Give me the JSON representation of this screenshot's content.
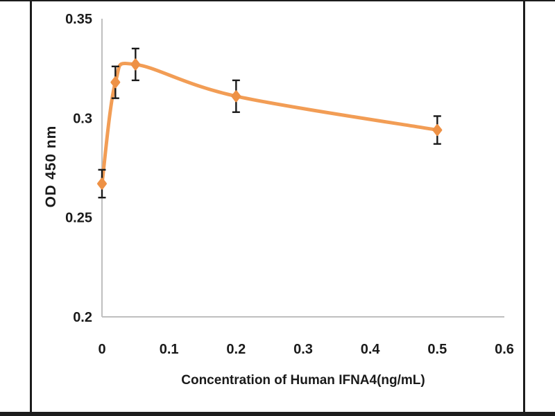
{
  "figure": {
    "background": "#ffffff",
    "frame_color": "#1c1c1c"
  },
  "chart_data": {
    "type": "line",
    "title": "",
    "xlabel": "Concentration of Human IFNA4(ng/mL)",
    "ylabel": "OD 450 nm",
    "x": [
      0,
      0.02,
      0.05,
      0.2,
      0.5
    ],
    "y": [
      0.267,
      0.318,
      0.327,
      0.311,
      0.294
    ],
    "yerr": [
      0.007,
      0.008,
      0.008,
      0.008,
      0.007
    ],
    "xlim": [
      0,
      0.6
    ],
    "ylim": [
      0.2,
      0.35
    ],
    "xticks": [
      0,
      0.1,
      0.2,
      0.3,
      0.4,
      0.5,
      0.6
    ],
    "xtick_labels": [
      "0",
      "0.1",
      "0.2",
      "0.3",
      "0.4",
      "0.5",
      "0.6"
    ],
    "yticks": [
      0.2,
      0.25,
      0.3,
      0.35
    ],
    "ytick_labels": [
      "0.2",
      "0.25",
      "0.3",
      "0.35"
    ],
    "smooth": true,
    "grid": false,
    "legend": null,
    "colors": {
      "line": "#F29D55",
      "marker": "#EE9145",
      "error_bar": "#1a1a1a",
      "axis_line": "#BFBFBF",
      "tick_text": "#1a1a1a"
    }
  }
}
